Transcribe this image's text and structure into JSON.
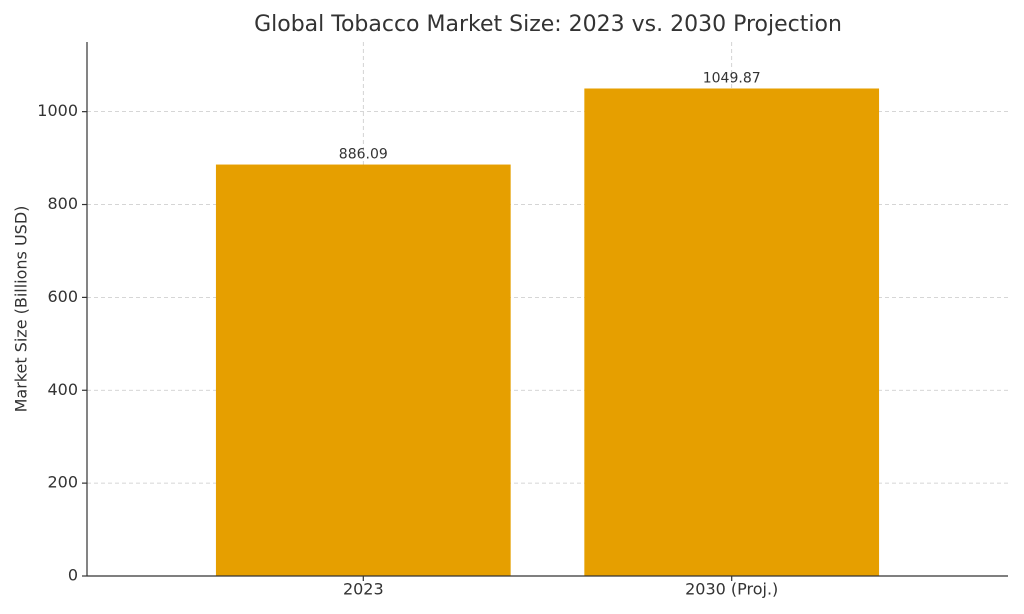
{
  "chart_data": {
    "type": "bar",
    "title": "Global Tobacco Market Size: 2023 vs. 2030 Projection",
    "y_label": "Market Size (Billions USD)",
    "categories": [
      "2023",
      "2030 (Proj.)"
    ],
    "values": [
      886.09,
      1049.87
    ],
    "color": "#e69f00",
    "ylim": [
      0,
      1150
    ],
    "yticks": [
      0,
      200,
      400,
      600,
      800,
      1000
    ],
    "grid": true
  }
}
